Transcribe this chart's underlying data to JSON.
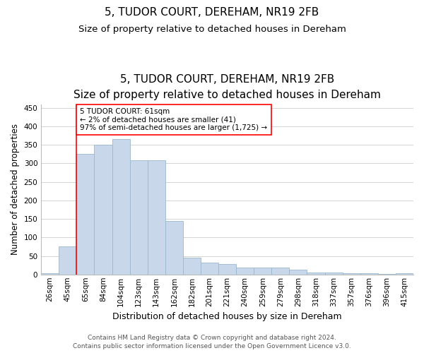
{
  "title1": "5, TUDOR COURT, DEREHAM, NR19 2FB",
  "title2": "Size of property relative to detached houses in Dereham",
  "xlabel": "Distribution of detached houses by size in Dereham",
  "ylabel": "Number of detached properties",
  "footer1": "Contains HM Land Registry data © Crown copyright and database right 2024.",
  "footer2": "Contains public sector information licensed under the Open Government Licence v3.0.",
  "categories": [
    "26sqm",
    "45sqm",
    "65sqm",
    "84sqm",
    "104sqm",
    "123sqm",
    "143sqm",
    "162sqm",
    "182sqm",
    "201sqm",
    "221sqm",
    "240sqm",
    "259sqm",
    "279sqm",
    "298sqm",
    "318sqm",
    "337sqm",
    "357sqm",
    "376sqm",
    "396sqm",
    "415sqm"
  ],
  "bar_heights": [
    3,
    75,
    325,
    350,
    365,
    308,
    308,
    144,
    45,
    32,
    28,
    18,
    18,
    18,
    13,
    6,
    6,
    4,
    4,
    1,
    4
  ],
  "bar_color": "#c8d8ea",
  "bar_edge_color": "#9ab8d0",
  "grid_color": "#cccccc",
  "vline_color": "red",
  "vline_x": 1.5,
  "annotation_text": "5 TUDOR COURT: 61sqm\n← 2% of detached houses are smaller (41)\n97% of semi-detached houses are larger (1,725) →",
  "annotation_box_color": "white",
  "annotation_box_edge": "red",
  "ylim": [
    0,
    460
  ],
  "yticks": [
    0,
    50,
    100,
    150,
    200,
    250,
    300,
    350,
    400,
    450
  ],
  "title1_fontsize": 11,
  "title2_fontsize": 9.5,
  "xlabel_fontsize": 9,
  "ylabel_fontsize": 8.5,
  "tick_fontsize": 7.5,
  "annotation_fontsize": 7.5,
  "footer_fontsize": 6.5
}
